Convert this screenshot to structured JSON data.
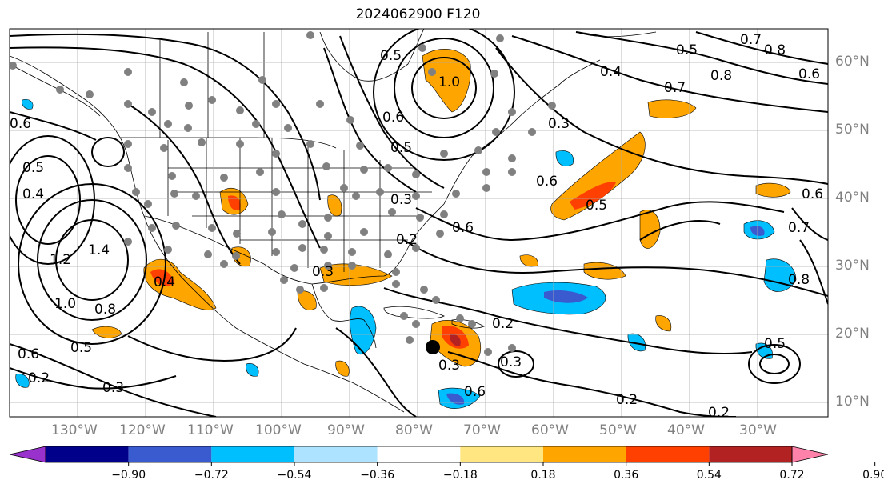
{
  "title": "2024062900 F120",
  "latitude_labels": [
    "60°N",
    "50°N",
    "40°N",
    "30°N",
    "20°N",
    "10°N"
  ],
  "longitude_labels": [
    "130°W",
    "120°W",
    "110°W",
    "100°W",
    "90°W",
    "80°W",
    "70°W",
    "60°W",
    "50°W",
    "40°W",
    "30°W"
  ],
  "contour_labels": [
    "0.2",
    "0.3",
    "0.4",
    "0.5",
    "0.6",
    "0.7",
    "0.8",
    "1.0",
    "1.2",
    "1.4"
  ],
  "colorbar": {
    "tick_labels": [
      "−0.90",
      "−0.72",
      "−0.54",
      "−0.36",
      "−0.18",
      "0.18",
      "0.36",
      "0.54",
      "0.72",
      "0.90"
    ],
    "colors": [
      "#9932cc",
      "#00008b",
      "#3a5bd0",
      "#00bfff",
      "#ade3ff",
      "#ffffff",
      "#ffe680",
      "#ffa500",
      "#ff4000",
      "#b22222",
      "#ff82ab"
    ]
  },
  "fill_colors": {
    "pos_low": "#ffa500",
    "pos_mid": "#ff4000",
    "pos_high": "#b22222",
    "neg_low": "#00bfff",
    "neg_mid": "#3a5bd0"
  },
  "station_marker_color": "#808080"
}
